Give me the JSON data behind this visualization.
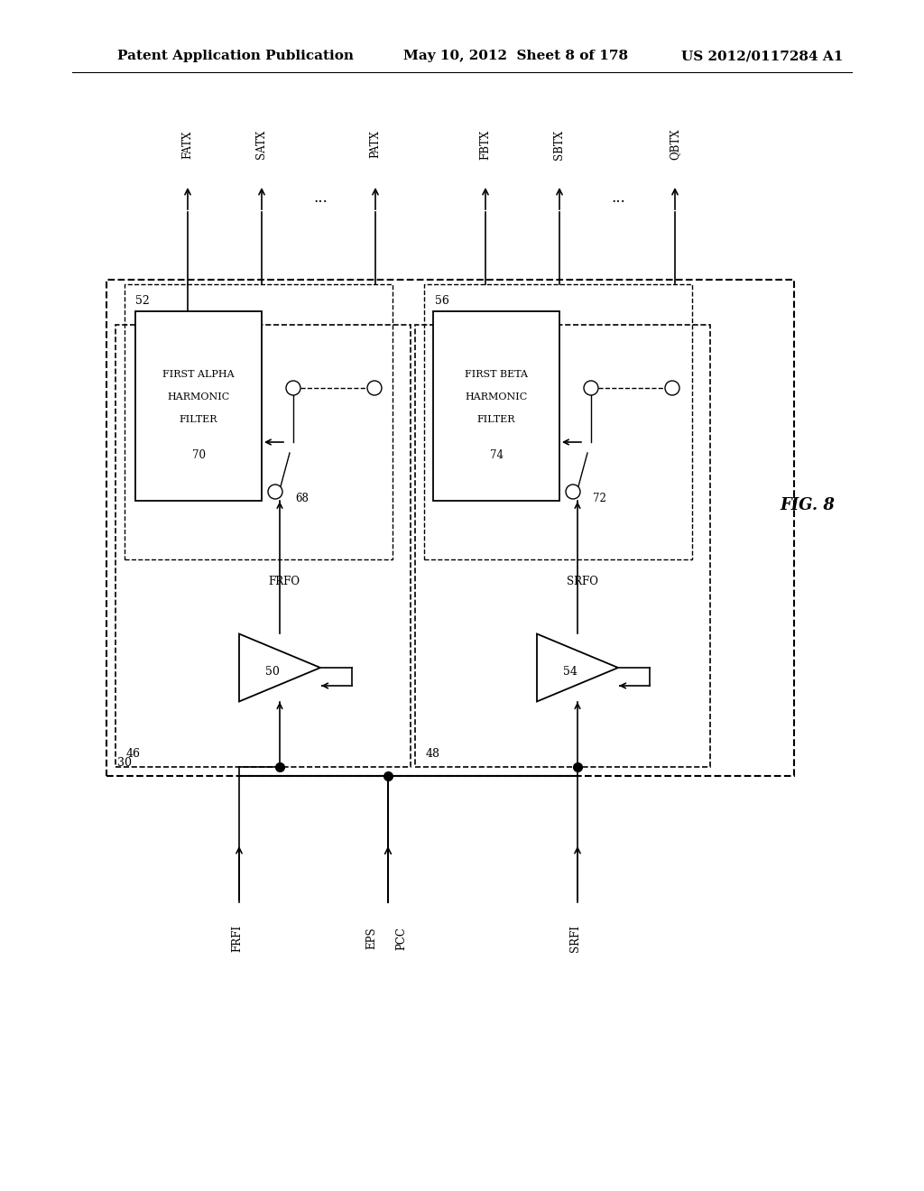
{
  "bg_color": "#ffffff",
  "header_left": "Patent Application Publication",
  "header_mid": "May 10, 2012  Sheet 8 of 178",
  "header_right": "US 2012/0117284 A1",
  "fig_label": "FIG. 8",
  "label_30": "30",
  "label_46": "46",
  "label_48": "48",
  "label_52": "52",
  "label_56": "56",
  "label_50": "50",
  "label_54": "54",
  "label_68": "68",
  "label_72": "72",
  "label_70": "70",
  "label_74": "74",
  "frfo": "FRFO",
  "srfo": "SRFO",
  "frfi": "FRFI",
  "eps": "EPS",
  "pcc": "PCC",
  "srfi": "SRFI",
  "fatx": "FATX",
  "satx": "SATX",
  "patx": "PATX",
  "fbtx": "FBTX",
  "sbtx": "SBTX",
  "qbtx": "QBTX"
}
